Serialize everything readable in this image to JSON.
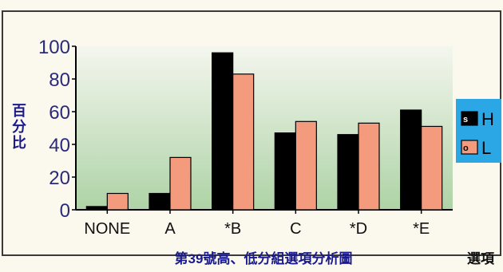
{
  "colors": {
    "page_bg": "#fbf8ee",
    "frame": "#3a3a3a",
    "plot_bg_top": "#f4f6ee",
    "plot_bg_bottom": "#aed3a6",
    "series_h": "#000000",
    "series_l": "#f39b7c",
    "axis_text": "#2a2a7a",
    "ytitle": "#1a1a8a",
    "legend_bg": "#2aa7e4",
    "xtitle": "#1a1a8a"
  },
  "chart_data": {
    "type": "bar",
    "title": "",
    "xlabel": "第39號高、低分組選項分析圖",
    "ylabel": "百分比",
    "ylim": [
      0,
      100
    ],
    "yticks": [
      0,
      20,
      40,
      60,
      80,
      100
    ],
    "categories": [
      "NONE",
      "A",
      "*B",
      "C",
      "*D",
      "*E"
    ],
    "series": [
      {
        "name": "H",
        "values": [
          2,
          10,
          96,
          47,
          46,
          61
        ]
      },
      {
        "name": "L",
        "values": [
          10,
          32,
          83,
          54,
          53,
          51
        ]
      }
    ],
    "legend": [
      {
        "marker": "s",
        "label": "H"
      },
      {
        "marker": "o",
        "label": "L"
      }
    ],
    "legend_position": "right",
    "grid": false
  },
  "footer": {
    "right_text": "選項"
  }
}
